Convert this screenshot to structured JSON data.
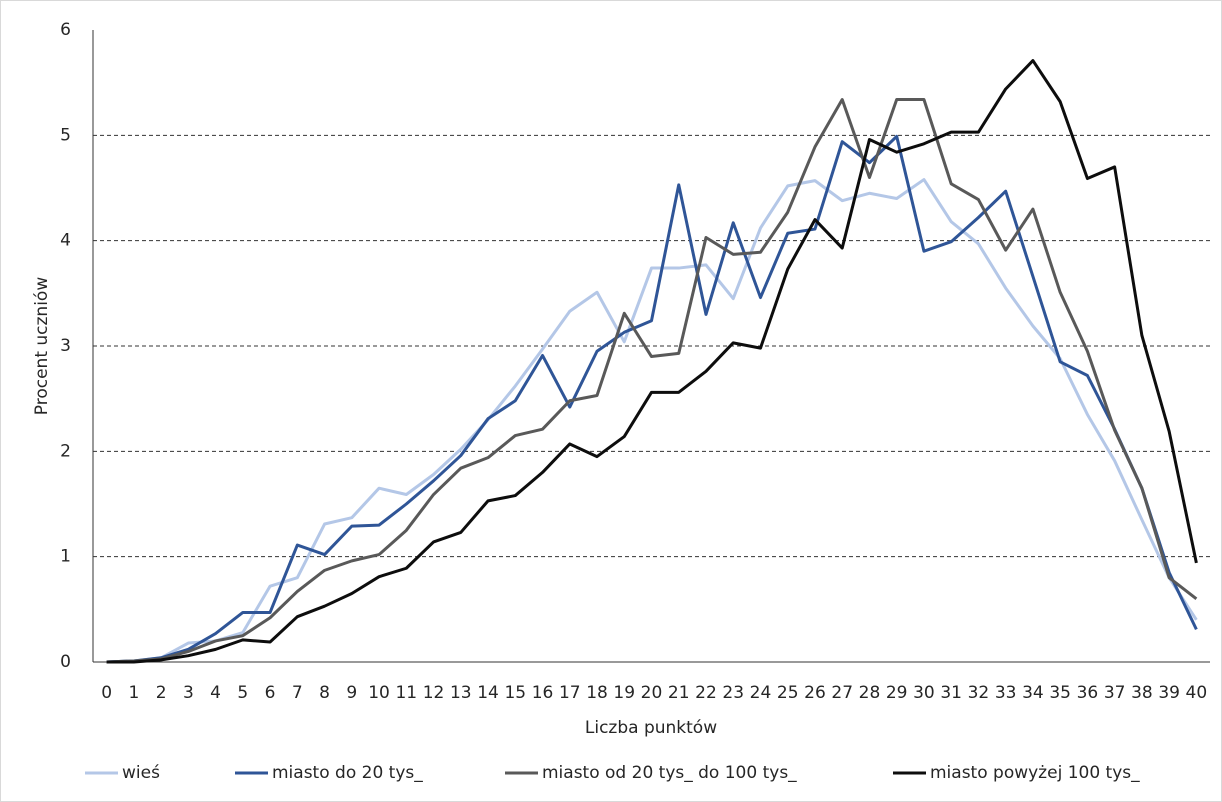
{
  "chart_data": {
    "type": "line",
    "x_label": "Liczba punktów",
    "y_label": "Procent uczniów",
    "categories": [
      "0",
      "1",
      "2",
      "3",
      "4",
      "5",
      "6",
      "7",
      "8",
      "9",
      "10",
      "11",
      "12",
      "13",
      "14",
      "15",
      "16",
      "17",
      "18",
      "19",
      "20",
      "21",
      "22",
      "23",
      "24",
      "25",
      "26",
      "27",
      "28",
      "29",
      "30",
      "31",
      "32",
      "33",
      "34",
      "35",
      "36",
      "37",
      "38",
      "39",
      "40"
    ],
    "series": [
      {
        "name": "wieś",
        "color": "#b4c7e7",
        "values": [
          0,
          0.01,
          0.04,
          0.18,
          0.2,
          0.28,
          0.72,
          0.8,
          1.31,
          1.37,
          1.65,
          1.59,
          1.78,
          2.02,
          2.3,
          2.62,
          2.97,
          3.33,
          3.51,
          3.04,
          3.74,
          3.74,
          3.77,
          3.45,
          4.12,
          4.52,
          4.57,
          4.38,
          4.45,
          4.4,
          4.58,
          4.18,
          3.97,
          3.55,
          3.19,
          2.88,
          2.35,
          1.91,
          1.35,
          0.8,
          0.4
        ]
      },
      {
        "name": "miasto do 20 tys_",
        "color": "#2f5597",
        "values": [
          0,
          0.01,
          0.04,
          0.12,
          0.27,
          0.47,
          0.47,
          1.11,
          1.02,
          1.29,
          1.3,
          1.5,
          1.72,
          1.96,
          2.31,
          2.48,
          2.91,
          2.42,
          2.95,
          3.13,
          3.24,
          4.53,
          3.3,
          4.17,
          3.46,
          4.07,
          4.11,
          4.94,
          4.74,
          4.99,
          3.9,
          3.99,
          4.22,
          4.47,
          3.66,
          2.85,
          2.72,
          2.21,
          1.65,
          0.85,
          0.31
        ]
      },
      {
        "name": "miasto od 20 tys_ do 100 tys_",
        "color": "#595959",
        "values": [
          0,
          0.01,
          0.03,
          0.1,
          0.2,
          0.25,
          0.42,
          0.67,
          0.87,
          0.96,
          1.02,
          1.25,
          1.59,
          1.84,
          1.94,
          2.15,
          2.21,
          2.48,
          2.53,
          3.31,
          2.9,
          2.93,
          4.03,
          3.87,
          3.89,
          4.27,
          4.89,
          5.34,
          4.6,
          5.34,
          5.34,
          4.54,
          4.39,
          3.91,
          4.3,
          3.51,
          2.95,
          2.2,
          1.65,
          0.8,
          0.6
        ]
      },
      {
        "name": "miasto powyżej 100 tys_",
        "color": "#0d0d0d",
        "values": [
          0,
          0,
          0.02,
          0.06,
          0.12,
          0.21,
          0.19,
          0.43,
          0.53,
          0.65,
          0.81,
          0.89,
          1.14,
          1.23,
          1.53,
          1.58,
          1.8,
          2.07,
          1.95,
          2.14,
          2.56,
          2.56,
          2.76,
          3.03,
          2.98,
          3.73,
          4.2,
          3.93,
          4.96,
          4.84,
          4.92,
          5.03,
          5.03,
          5.44,
          5.71,
          5.32,
          4.59,
          4.7,
          3.1,
          2.19,
          0.94
        ]
      }
    ],
    "ylim": [
      0,
      6
    ],
    "yticks": [
      0,
      1,
      2,
      3,
      4,
      5,
      6
    ],
    "grid": true,
    "legend": "bottom"
  }
}
